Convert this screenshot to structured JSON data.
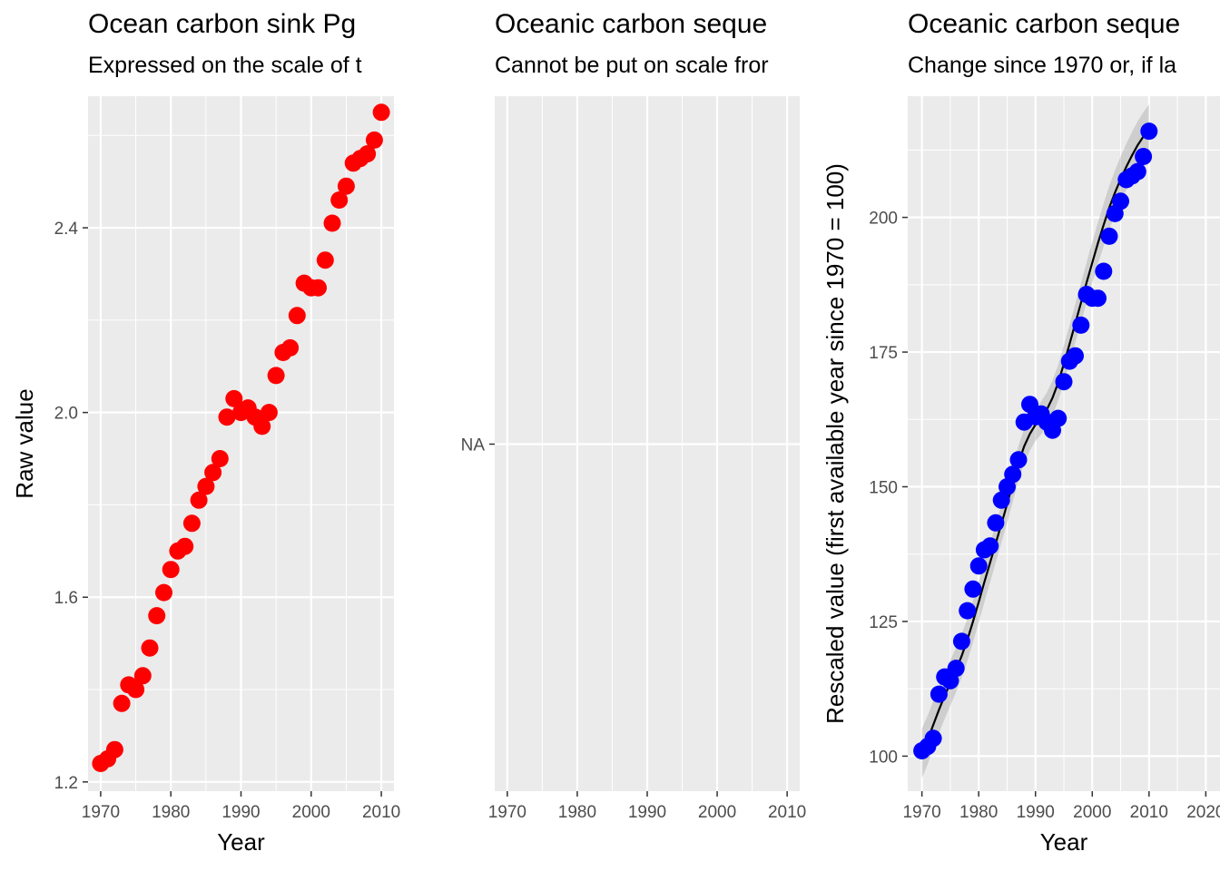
{
  "chart_data": [
    {
      "type": "scatter",
      "title": "Ocean carbon sink Pg",
      "subtitle": "Expressed on the scale of t",
      "xlabel": "Year",
      "ylabel": "Raw value",
      "xlim": [
        1968.2,
        2011.8
      ],
      "ylim": [
        1.18,
        2.685
      ],
      "x_ticks": [
        1970,
        1980,
        1990,
        2000,
        2010
      ],
      "y_ticks": [
        1.2,
        1.6,
        2.0,
        2.4
      ],
      "y_tick_labels": [
        "1.2",
        "1.6",
        "2.0",
        "2.4"
      ],
      "point_color": "#ff0000",
      "grid": true,
      "x": [
        1970,
        1971,
        1972,
        1973,
        1974,
        1975,
        1976,
        1977,
        1978,
        1979,
        1980,
        1981,
        1982,
        1983,
        1984,
        1985,
        1986,
        1987,
        1988,
        1989,
        1990,
        1991,
        1992,
        1993,
        1994,
        1995,
        1996,
        1997,
        1998,
        1999,
        2000,
        2001,
        2002,
        2003,
        2004,
        2005,
        2006,
        2007,
        2008,
        2009,
        2010
      ],
      "y": [
        1.24,
        1.25,
        1.27,
        1.37,
        1.41,
        1.4,
        1.43,
        1.49,
        1.56,
        1.61,
        1.66,
        1.7,
        1.71,
        1.76,
        1.81,
        1.84,
        1.87,
        1.9,
        1.99,
        2.03,
        2.0,
        2.01,
        1.99,
        1.97,
        2.0,
        2.08,
        2.13,
        2.14,
        2.21,
        2.28,
        2.27,
        2.27,
        2.33,
        2.41,
        2.46,
        2.49,
        2.54,
        2.55,
        2.56,
        2.59,
        2.65
      ]
    },
    {
      "type": "scatter",
      "title": "Oceanic carbon seque",
      "subtitle": "Cannot be put on scale fror",
      "xlabel": "",
      "ylabel": "",
      "xlim": [
        1968.2,
        2011.8
      ],
      "x_ticks": [
        1970,
        1980,
        1990,
        2000,
        2010
      ],
      "y_ticks": [
        "NA"
      ],
      "grid": true,
      "x": [],
      "y": []
    },
    {
      "type": "scatter",
      "title": "Oceanic carbon seque",
      "subtitle": "Change since 1970 or, if la",
      "xlabel": "Year",
      "ylabel": "Rescaled value (first available year since 1970 = 100)",
      "xlim": [
        1967.5,
        2022.5
      ],
      "ylim": [
        93.5,
        222.5
      ],
      "x_ticks": [
        1970,
        1980,
        1990,
        2000,
        2010,
        2020
      ],
      "y_ticks": [
        100,
        125,
        150,
        175,
        200
      ],
      "point_color": "#0000ff",
      "smooth_color": "#000000",
      "grid": true,
      "x": [
        1970,
        1971,
        1972,
        1973,
        1974,
        1975,
        1976,
        1977,
        1978,
        1979,
        1980,
        1981,
        1982,
        1983,
        1984,
        1985,
        1986,
        1987,
        1988,
        1989,
        1990,
        1991,
        1992,
        1993,
        1994,
        1995,
        1996,
        1997,
        1998,
        1999,
        2000,
        2001,
        2002,
        2003,
        2004,
        2005,
        2006,
        2007,
        2008,
        2009,
        2010
      ],
      "y": [
        101.0,
        101.8,
        103.3,
        111.5,
        114.7,
        114.0,
        116.3,
        121.3,
        127.0,
        131.0,
        135.3,
        138.3,
        139.0,
        143.3,
        147.5,
        150.0,
        152.3,
        155.0,
        162.0,
        165.3,
        163.0,
        163.5,
        162.0,
        160.5,
        162.7,
        169.5,
        173.3,
        174.3,
        180.0,
        185.7,
        185.0,
        185.0,
        190.0,
        196.5,
        200.7,
        203.0,
        207.0,
        207.7,
        208.5,
        211.3,
        216.0
      ],
      "smooth_y": [
        100.5,
        103.0,
        105.8,
        108.6,
        111.2,
        113.6,
        116.0,
        118.6,
        121.6,
        125.0,
        128.6,
        132.3,
        135.9,
        139.5,
        143.1,
        146.8,
        150.6,
        154.4,
        157.5,
        159.8,
        161.5,
        162.8,
        164.3,
        166.5,
        169.3,
        172.8,
        176.5,
        180.3,
        184.1,
        187.9,
        191.6,
        195.2,
        198.6,
        201.8,
        204.6,
        207.1,
        209.4,
        211.5,
        213.4,
        215.0,
        216.4
      ]
    }
  ]
}
